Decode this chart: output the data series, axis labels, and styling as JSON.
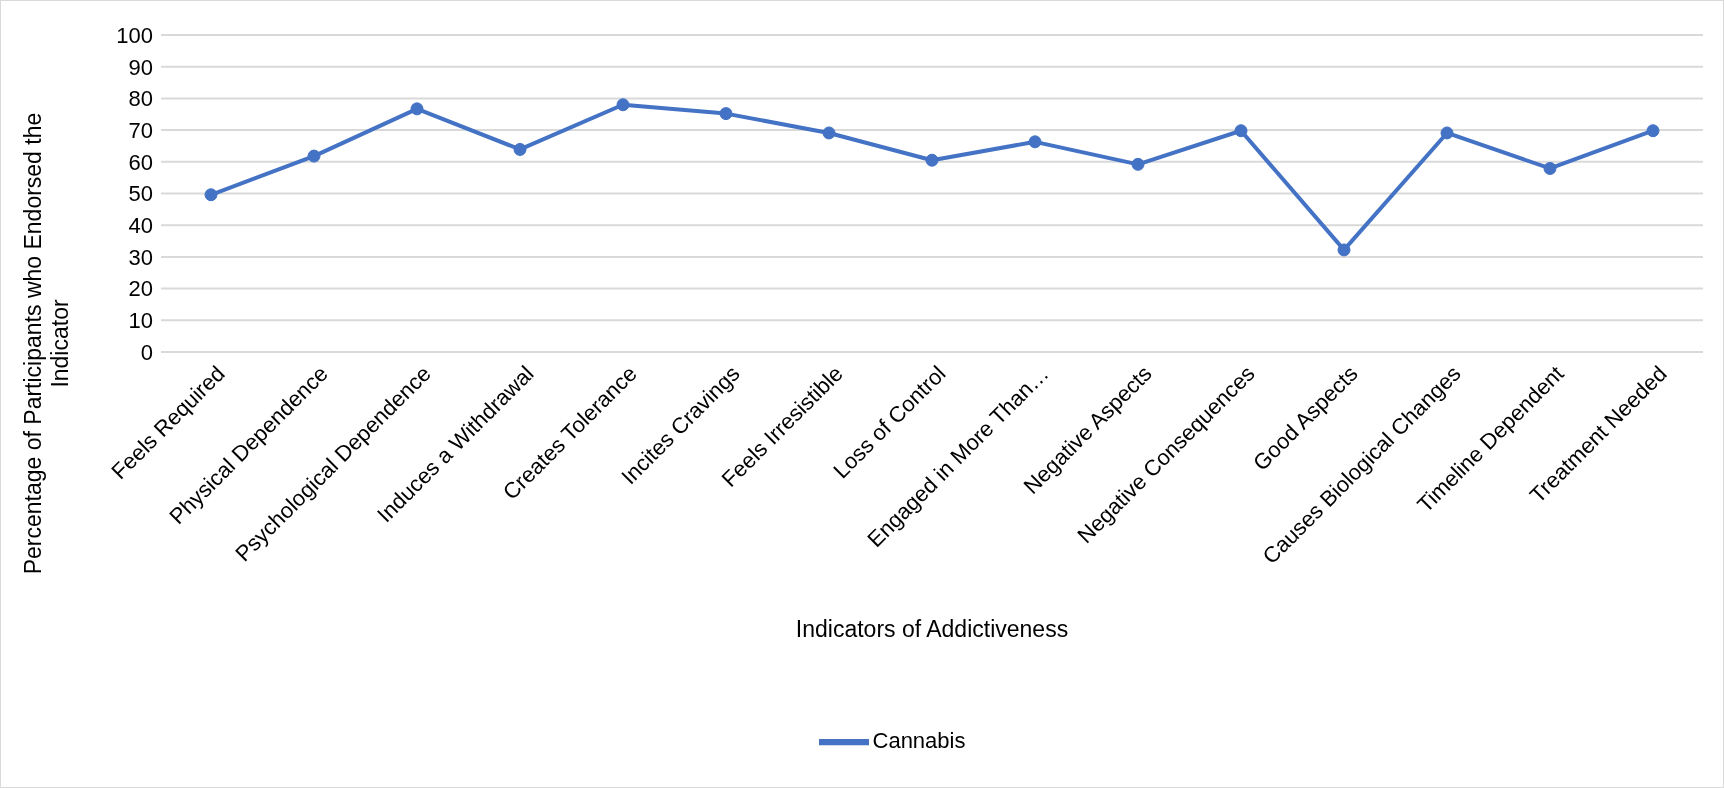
{
  "chart_data": {
    "type": "line",
    "xlabel": "Indicators of Addictiveness",
    "ylabel": "Percentage of Participants who Endorsed the Indicator",
    "categories": [
      "Feels Required",
      "Physical Dependence",
      "Psychological Dependence",
      "Induces a Withdrawal",
      "Creates Tolerance",
      "Incites Cravings",
      "Feels Irresistible",
      "Loss of Control",
      "Engaged in More Than…",
      "Negative Aspects",
      "Negative Consequences",
      "Good Aspects",
      "Causes Biological Changes",
      "Timeline Dependent",
      "Treatment Needed"
    ],
    "series": [
      {
        "name": "Cannabis",
        "color": "#4472c4",
        "values": [
          49.6,
          61.8,
          76.7,
          63.9,
          78.0,
          75.2,
          69.1,
          60.5,
          66.3,
          59.2,
          69.8,
          32.2,
          69.1,
          57.9,
          69.8
        ]
      }
    ],
    "ylim": [
      0,
      100
    ],
    "yticks": [
      0,
      10,
      20,
      30,
      40,
      50,
      60,
      70,
      80,
      90,
      100
    ],
    "grid": "y",
    "legend": "bottom",
    "marker": "circle",
    "line_style": "solid"
  }
}
